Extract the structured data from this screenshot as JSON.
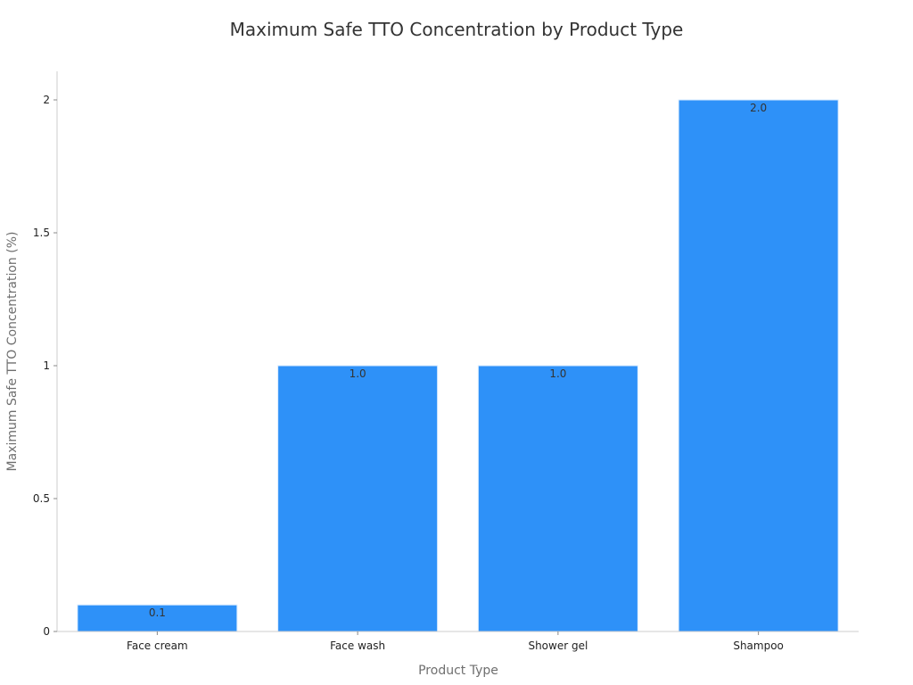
{
  "chart_data": {
    "type": "bar",
    "title": "Maximum Safe TTO Concentration by Product Type",
    "xlabel": "Product Type",
    "ylabel": "Maximum Safe TTO Concentration (%)",
    "categories": [
      "Face cream",
      "Face wash",
      "Shower gel",
      "Shampoo"
    ],
    "values": [
      0.1,
      1.0,
      1.0,
      2.0
    ],
    "data_labels": [
      "0.1",
      "1.0",
      "1.0",
      "2.0"
    ],
    "ylim": [
      0,
      2.1
    ],
    "yticks": [
      0,
      0.5,
      1,
      1.5,
      2
    ],
    "ytick_labels": [
      "0",
      "0.5",
      "1",
      "1.5",
      "2"
    ],
    "bar_color": "#2e91f8",
    "grid": false,
    "legend": "none"
  }
}
